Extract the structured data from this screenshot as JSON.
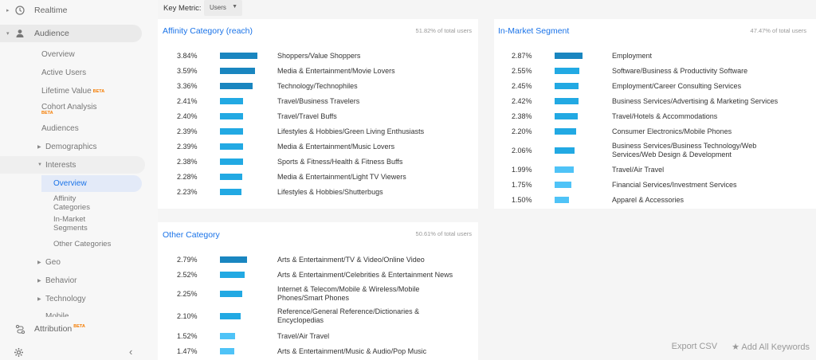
{
  "colors": {
    "bar_dark": "#1a86c0",
    "bar_mid": "#22a9e3",
    "bar_light": "#4fc3f7",
    "link": "#1a73e8",
    "beta": "#f57c00"
  },
  "sidebar": {
    "realtime": "Realtime",
    "audience": "Audience",
    "overview": "Overview",
    "active_users": "Active Users",
    "lifetime_value": "Lifetime Value",
    "cohort_analysis": "Cohort Analysis",
    "audiences": "Audiences",
    "demographics": "Demographics",
    "interests": "Interests",
    "interests_overview": "Overview",
    "affinity_categories": "Affinity Categories",
    "in_market_segments": "In-Market Segments",
    "other_categories": "Other Categories",
    "geo": "Geo",
    "behavior": "Behavior",
    "technology": "Technology",
    "mobile": "Mobile",
    "attribution": "Attribution",
    "beta": "BETA",
    "collapse": "‹"
  },
  "toolbar": {
    "key_metric_label": "Key Metric:",
    "metric_value": "Users"
  },
  "affinity": {
    "title": "Affinity Category (reach)",
    "total": "51.82% of total users",
    "rows": [
      {
        "pct": "3.84%",
        "value": 3.84,
        "label": "Shoppers/Value Shoppers"
      },
      {
        "pct": "3.59%",
        "value": 3.59,
        "label": "Media & Entertainment/Movie Lovers"
      },
      {
        "pct": "3.36%",
        "value": 3.36,
        "label": "Technology/Technophiles"
      },
      {
        "pct": "2.41%",
        "value": 2.41,
        "label": "Travel/Business Travelers"
      },
      {
        "pct": "2.40%",
        "value": 2.4,
        "label": "Travel/Travel Buffs"
      },
      {
        "pct": "2.39%",
        "value": 2.39,
        "label": "Lifestyles & Hobbies/Green Living Enthusiasts"
      },
      {
        "pct": "2.39%",
        "value": 2.39,
        "label": "Media & Entertainment/Music Lovers"
      },
      {
        "pct": "2.38%",
        "value": 2.38,
        "label": "Sports & Fitness/Health & Fitness Buffs"
      },
      {
        "pct": "2.28%",
        "value": 2.28,
        "label": "Media & Entertainment/Light TV Viewers"
      },
      {
        "pct": "2.23%",
        "value": 2.23,
        "label": "Lifestyles & Hobbies/Shutterbugs"
      }
    ]
  },
  "inmarket": {
    "title": "In-Market Segment",
    "total": "47.47% of total users",
    "rows": [
      {
        "pct": "2.87%",
        "value": 2.87,
        "label": "Employment"
      },
      {
        "pct": "2.55%",
        "value": 2.55,
        "label": "Software/Business & Productivity Software"
      },
      {
        "pct": "2.45%",
        "value": 2.45,
        "label": "Employment/Career Consulting Services"
      },
      {
        "pct": "2.42%",
        "value": 2.42,
        "label": "Business Services/Advertising & Marketing Services"
      },
      {
        "pct": "2.38%",
        "value": 2.38,
        "label": "Travel/Hotels & Accommodations"
      },
      {
        "pct": "2.20%",
        "value": 2.2,
        "label": "Consumer Electronics/Mobile Phones"
      },
      {
        "pct": "2.06%",
        "value": 2.06,
        "label": "Business Services/Business Technology/Web Services/Web Design & Development"
      },
      {
        "pct": "1.99%",
        "value": 1.99,
        "label": "Travel/Air Travel"
      },
      {
        "pct": "1.75%",
        "value": 1.75,
        "label": "Financial Services/Investment Services"
      },
      {
        "pct": "1.50%",
        "value": 1.5,
        "label": "Apparel & Accessories"
      }
    ]
  },
  "other": {
    "title": "Other Category",
    "total": "50.61% of total users",
    "rows": [
      {
        "pct": "2.79%",
        "value": 2.79,
        "label": "Arts & Entertainment/TV & Video/Online Video"
      },
      {
        "pct": "2.52%",
        "value": 2.52,
        "label": "Arts & Entertainment/Celebrities & Entertainment News"
      },
      {
        "pct": "2.25%",
        "value": 2.25,
        "label": "Internet & Telecom/Mobile & Wireless/Mobile Phones/Smart Phones"
      },
      {
        "pct": "2.10%",
        "value": 2.1,
        "label": "Reference/General Reference/Dictionaries & Encyclopedias"
      },
      {
        "pct": "1.52%",
        "value": 1.52,
        "label": "Travel/Air Travel"
      },
      {
        "pct": "1.47%",
        "value": 1.47,
        "label": "Arts & Entertainment/Music & Audio/Pop Music"
      }
    ]
  },
  "footer": {
    "export": "Export CSV",
    "add_keywords": "Add All Keywords"
  }
}
